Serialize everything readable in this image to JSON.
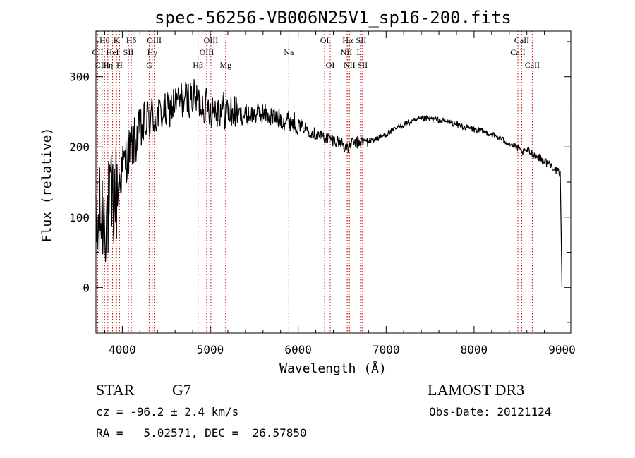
{
  "chart_data": {
    "type": "line",
    "title": "spec-56256-VB006N25V1_sp16-200.fits",
    "xlabel": "Wavelength (Å)",
    "ylabel": "Flux (relative)",
    "xlim": [
      3700,
      9100
    ],
    "ylim": [
      -65,
      365
    ],
    "xticks": [
      4000,
      5000,
      6000,
      7000,
      8000,
      9000
    ],
    "yticks": [
      0,
      100,
      200,
      300
    ],
    "grid": false,
    "line_color": "#000000",
    "marker_color": "#cc0000",
    "series": [
      {
        "name": "spectrum",
        "x": [
          3700,
          3750,
          3800,
          3850,
          3900,
          3950,
          4000,
          4100,
          4200,
          4300,
          4400,
          4500,
          4600,
          4700,
          4800,
          4900,
          5000,
          5100,
          5200,
          5300,
          5400,
          5500,
          5600,
          5700,
          5800,
          5900,
          6000,
          6100,
          6200,
          6300,
          6400,
          6500,
          6560,
          6600,
          6700,
          6800,
          6900,
          7000,
          7100,
          7200,
          7300,
          7400,
          7500,
          7600,
          7700,
          7800,
          7900,
          8000,
          8100,
          8200,
          8300,
          8400,
          8500,
          8550,
          8600,
          8700,
          8800,
          8900,
          8980,
          9000
        ],
        "y": [
          60,
          100,
          110,
          105,
          125,
          140,
          170,
          200,
          220,
          240,
          245,
          250,
          262,
          268,
          270,
          262,
          255,
          255,
          250,
          248,
          245,
          247,
          248,
          243,
          240,
          238,
          232,
          225,
          218,
          214,
          210,
          206,
          195,
          205,
          207,
          208,
          212,
          218,
          225,
          232,
          236,
          240,
          240,
          238,
          236,
          232,
          228,
          225,
          222,
          218,
          212,
          205,
          198,
          192,
          195,
          188,
          180,
          172,
          160,
          0
        ]
      }
    ],
    "line_markers": [
      {
        "label": "Hθ",
        "wave": 3798,
        "row": 1
      },
      {
        "label": "CII",
        "wave": 3720,
        "row": 2
      },
      {
        "label": "CIII",
        "wave": 3770,
        "row": 3
      },
      {
        "label": "K",
        "wave": 3934,
        "row": 1
      },
      {
        "label": "HeI",
        "wave": 3889,
        "row": 2
      },
      {
        "label": "Hη",
        "wave": 3835,
        "row": 3
      },
      {
        "label": "Hδ",
        "wave": 4102,
        "row": 1
      },
      {
        "label": "SII",
        "wave": 4069,
        "row": 2
      },
      {
        "label": "H",
        "wave": 3968,
        "row": 3
      },
      {
        "label": "OIII",
        "wave": 4363,
        "row": 1
      },
      {
        "label": "Hγ",
        "wave": 4340,
        "row": 2
      },
      {
        "label": "G",
        "wave": 4305,
        "row": 3
      },
      {
        "label": "OIII",
        "wave": 5007,
        "row": 1
      },
      {
        "label": "OIII",
        "wave": 4959,
        "row": 2
      },
      {
        "label": "Hβ",
        "wave": 4861,
        "row": 3
      },
      {
        "label": "Mg",
        "wave": 5175,
        "row": 3
      },
      {
        "label": "Na",
        "wave": 5893,
        "row": 2
      },
      {
        "label": "OI",
        "wave": 6300,
        "row": 1
      },
      {
        "label": "OI",
        "wave": 6364,
        "row": 3
      },
      {
        "label": "Hα",
        "wave": 6563,
        "row": 1
      },
      {
        "label": "SII",
        "wave": 6716,
        "row": 1
      },
      {
        "label": "NII",
        "wave": 6548,
        "row": 2
      },
      {
        "label": "Li",
        "wave": 6708,
        "row": 2
      },
      {
        "label": "NII",
        "wave": 6583,
        "row": 3
      },
      {
        "label": "SII",
        "wave": 6731,
        "row": 3
      },
      {
        "label": "CaII",
        "wave": 8542,
        "row": 1
      },
      {
        "label": "CaII",
        "wave": 8498,
        "row": 2
      },
      {
        "label": "CaII",
        "wave": 8662,
        "row": 3
      }
    ]
  },
  "info": {
    "class_label": "STAR",
    "subclass": "G7",
    "survey": "LAMOST DR3",
    "cz_text": "cz = -96.2 ± 2.4 km/s",
    "obs_date_text": "Obs-Date: 20121124",
    "coord_text": "RA =   5.02571, DEC =  26.57850"
  }
}
